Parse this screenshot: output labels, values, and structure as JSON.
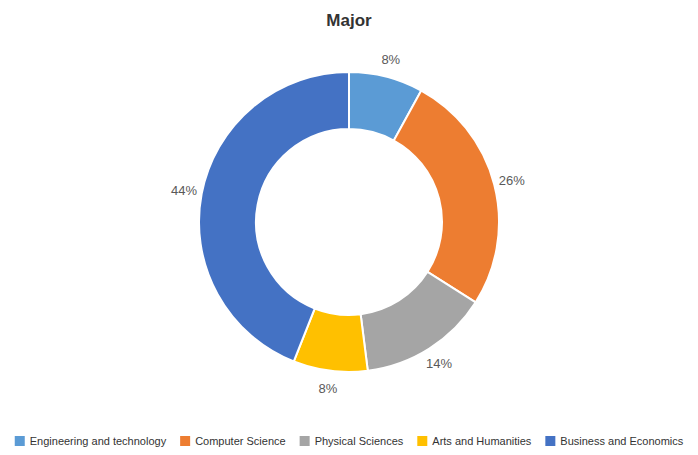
{
  "chart_data": {
    "type": "donut",
    "title": "Major",
    "categories": [
      "Engineering and technology",
      "Computer Science",
      "Physical Sciences",
      "Arts and Humanities",
      "Business and Economics"
    ],
    "values": [
      8,
      26,
      14,
      8,
      44
    ],
    "value_labels": [
      "8%",
      "26%",
      "14%",
      "8%",
      "44%"
    ],
    "colors": [
      "#5B9BD5",
      "#ED7D31",
      "#A5A5A5",
      "#FFC000",
      "#4472C4"
    ],
    "data_labels": true,
    "legend": "bottom"
  }
}
